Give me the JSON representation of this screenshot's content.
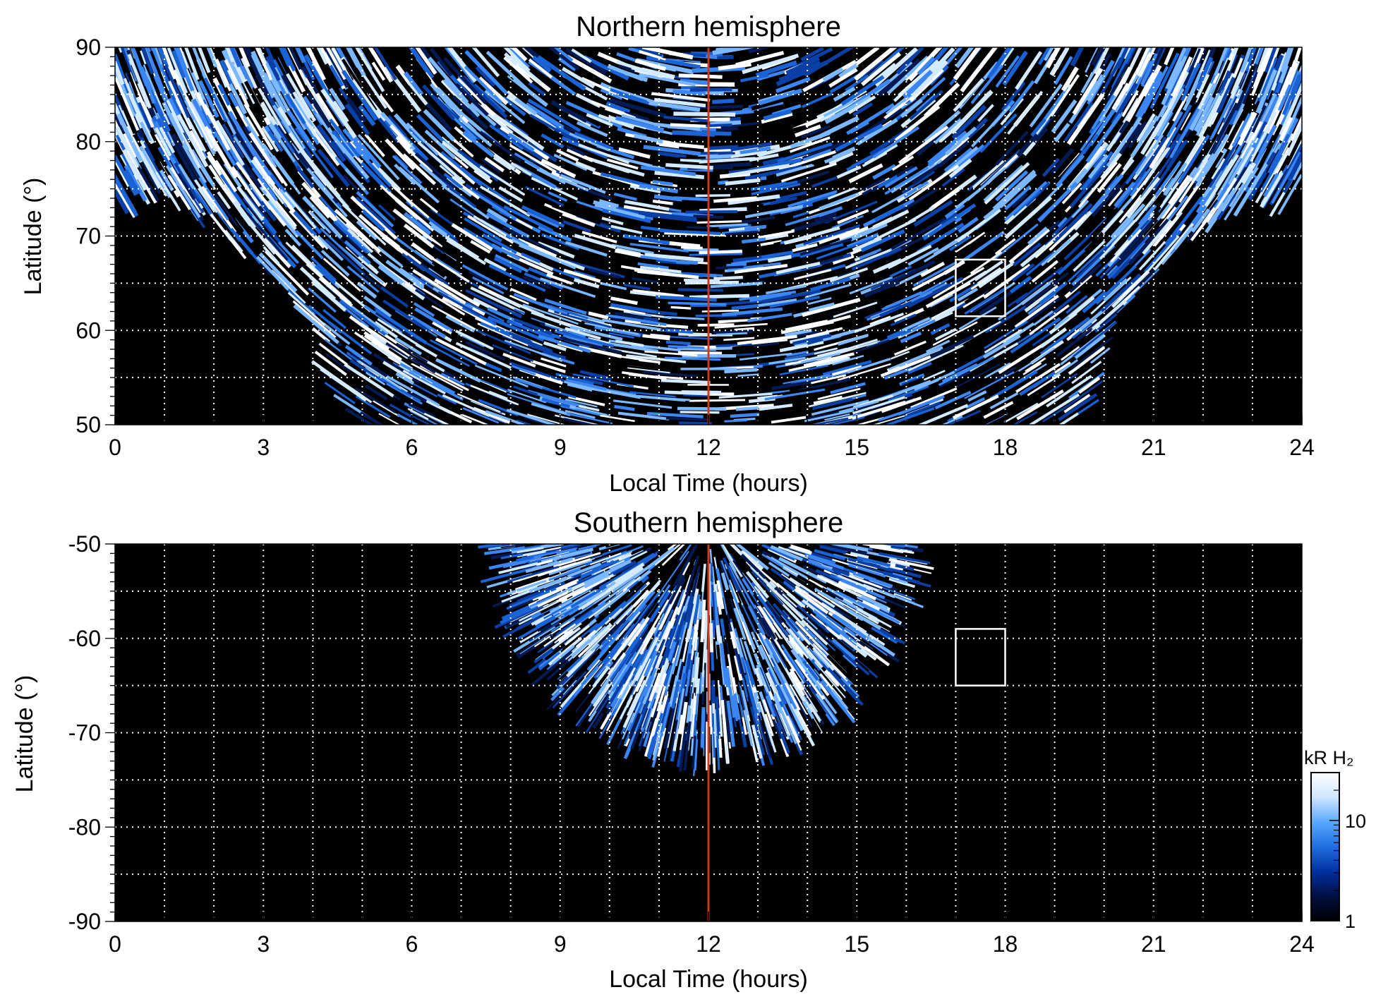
{
  "chart_data": [
    {
      "type": "heatmap",
      "title": "Northern hemisphere",
      "xlabel": "Local Time (hours)",
      "ylabel": "Latitude (°)",
      "xlim": [
        0,
        24
      ],
      "ylim": [
        50,
        90
      ],
      "x_ticks": [
        0,
        3,
        6,
        9,
        12,
        15,
        18,
        21,
        24
      ],
      "x_tick_labels": [
        "0",
        "3",
        "6",
        "9",
        "12",
        "15",
        "18",
        "21",
        "24"
      ],
      "y_ticks": [
        50,
        60,
        70,
        80,
        90
      ],
      "y_tick_labels": [
        "50",
        "60",
        "70",
        "80",
        "90"
      ],
      "grid": "dotted, 1 h and 5° spacing",
      "coverage": {
        "lt_center": 12,
        "boundary": [
          {
            "lt": 0,
            "lat": 73.5
          },
          {
            "lt": 1,
            "lat": 75
          },
          {
            "lt": 2,
            "lat": 71
          },
          {
            "lt": 3,
            "lat": 67
          },
          {
            "lt": 4,
            "lat": 61.5
          },
          {
            "lt": 4.7,
            "lat": 50
          },
          {
            "lt": 19.4,
            "lat": 50
          },
          {
            "lt": 20,
            "lat": 58
          },
          {
            "lt": 21,
            "lat": 66
          },
          {
            "lt": 22,
            "lat": 71
          },
          {
            "lt": 23,
            "lat": 75
          },
          {
            "lt": 24,
            "lat": 74
          }
        ]
      },
      "noon_line": {
        "lt": 12,
        "color": "#cc3a1a"
      },
      "highlight_box": {
        "lt": [
          17,
          18
        ],
        "lat": [
          61.5,
          67.5
        ],
        "color": "#ffffff"
      }
    },
    {
      "type": "heatmap",
      "title": "Southern hemisphere",
      "xlabel": "Local Time (hours)",
      "ylabel": "Latitude (°)",
      "xlim": [
        0,
        24
      ],
      "ylim": [
        -90,
        -50
      ],
      "x_ticks": [
        0,
        3,
        6,
        9,
        12,
        15,
        18,
        21,
        24
      ],
      "x_tick_labels": [
        "0",
        "3",
        "6",
        "9",
        "12",
        "15",
        "18",
        "21",
        "24"
      ],
      "y_ticks": [
        -90,
        -80,
        -70,
        -60,
        -50
      ],
      "y_tick_labels": [
        "-90",
        "-80",
        "-70",
        "-60",
        "-50"
      ],
      "grid": "dotted, 1 h and 5° spacing",
      "coverage": {
        "lt_center": 12,
        "lt_range": [
          7.9,
          16.4
        ],
        "lat_min": -72.5
      },
      "noon_line": {
        "lt": 12,
        "color": "#cc3a1a"
      },
      "highlight_box": {
        "lt": [
          17,
          18
        ],
        "lat": [
          -65,
          -59
        ],
        "color": "#ffffff"
      }
    }
  ],
  "colorbar": {
    "label": "kR H₂",
    "scale": "log",
    "range": [
      1,
      30
    ],
    "ticks": [
      1,
      10
    ],
    "tick_labels": [
      "1",
      "10"
    ],
    "colors": [
      "#000000",
      "#001040",
      "#0030a0",
      "#1f6ee0",
      "#5aa8ff",
      "#cfe6ff",
      "#ffffff"
    ]
  }
}
